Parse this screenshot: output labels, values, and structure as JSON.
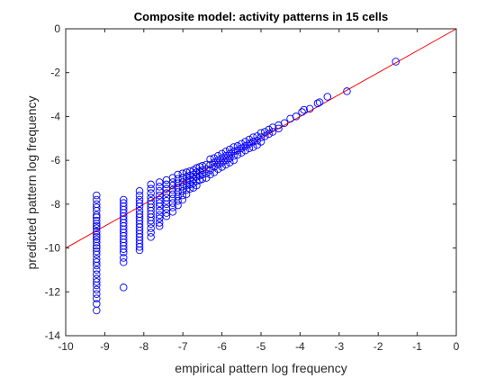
{
  "chart_data": {
    "type": "scatter",
    "title": "Composite model: activity patterns in 15 cells",
    "xlabel": "empirical pattern log frequency",
    "ylabel": "predicted pattern log frequency",
    "xlim": [
      -10,
      0
    ],
    "ylim": [
      -14,
      0
    ],
    "xticks": [
      -10,
      -9,
      -8,
      -7,
      -6,
      -5,
      -4,
      -3,
      -2,
      -1,
      0
    ],
    "yticks": [
      -14,
      -12,
      -10,
      -8,
      -6,
      -4,
      -2,
      0
    ],
    "grid": false,
    "legend": "none",
    "marker": "open-circle",
    "marker_color": "#0000ff",
    "reference_line": {
      "from": [
        -10,
        -10
      ],
      "to": [
        0,
        0
      ],
      "color": "#ff0000"
    },
    "series": [
      {
        "values": [
          [
            -9.21,
            -7.6
          ],
          [
            -9.21,
            -7.8
          ],
          [
            -9.21,
            -8.0
          ],
          [
            -9.21,
            -8.15
          ],
          [
            -9.21,
            -8.3
          ],
          [
            -9.21,
            -8.5
          ],
          [
            -9.21,
            -8.6
          ],
          [
            -9.21,
            -8.75
          ],
          [
            -9.21,
            -8.9
          ],
          [
            -9.21,
            -9.0
          ],
          [
            -9.21,
            -9.1
          ],
          [
            -9.21,
            -9.25
          ],
          [
            -9.21,
            -9.4
          ],
          [
            -9.21,
            -9.5
          ],
          [
            -9.21,
            -9.6
          ],
          [
            -9.21,
            -9.75
          ],
          [
            -9.21,
            -9.9
          ],
          [
            -9.21,
            -10.0
          ],
          [
            -9.21,
            -10.15
          ],
          [
            -9.21,
            -10.3
          ],
          [
            -9.21,
            -10.5
          ],
          [
            -9.21,
            -10.65
          ],
          [
            -9.21,
            -10.8
          ],
          [
            -9.21,
            -11.0
          ],
          [
            -9.21,
            -11.2
          ],
          [
            -9.21,
            -11.4
          ],
          [
            -9.21,
            -11.55
          ],
          [
            -9.21,
            -11.7
          ],
          [
            -9.21,
            -11.9
          ],
          [
            -9.21,
            -12.1
          ],
          [
            -9.21,
            -12.3
          ],
          [
            -9.21,
            -12.55
          ],
          [
            -9.21,
            -12.85
          ],
          [
            -8.52,
            -7.8
          ],
          [
            -8.52,
            -7.95
          ],
          [
            -8.52,
            -8.1
          ],
          [
            -8.52,
            -8.25
          ],
          [
            -8.52,
            -8.4
          ],
          [
            -8.52,
            -8.55
          ],
          [
            -8.52,
            -8.7
          ],
          [
            -8.52,
            -8.85
          ],
          [
            -8.52,
            -9.0
          ],
          [
            -8.52,
            -9.15
          ],
          [
            -8.52,
            -9.3
          ],
          [
            -8.52,
            -9.45
          ],
          [
            -8.52,
            -9.6
          ],
          [
            -8.52,
            -9.75
          ],
          [
            -8.52,
            -9.9
          ],
          [
            -8.52,
            -10.05
          ],
          [
            -8.52,
            -10.2
          ],
          [
            -8.52,
            -10.45
          ],
          [
            -8.52,
            -10.65
          ],
          [
            -8.52,
            -11.8
          ],
          [
            -8.11,
            -7.4
          ],
          [
            -8.11,
            -7.6
          ],
          [
            -8.11,
            -7.8
          ],
          [
            -8.11,
            -7.95
          ],
          [
            -8.11,
            -8.1
          ],
          [
            -8.11,
            -8.3
          ],
          [
            -8.11,
            -8.45
          ],
          [
            -8.11,
            -8.6
          ],
          [
            -8.11,
            -8.75
          ],
          [
            -8.11,
            -8.9
          ],
          [
            -8.11,
            -9.05
          ],
          [
            -8.11,
            -9.2
          ],
          [
            -8.11,
            -9.35
          ],
          [
            -8.11,
            -9.5
          ],
          [
            -8.11,
            -9.65
          ],
          [
            -8.11,
            -9.8
          ],
          [
            -8.11,
            -9.95
          ],
          [
            -8.11,
            -10.1
          ],
          [
            -7.82,
            -7.1
          ],
          [
            -7.82,
            -7.3
          ],
          [
            -7.82,
            -7.5
          ],
          [
            -7.82,
            -7.7
          ],
          [
            -7.82,
            -7.85
          ],
          [
            -7.82,
            -8.0
          ],
          [
            -7.82,
            -8.15
          ],
          [
            -7.82,
            -8.3
          ],
          [
            -7.82,
            -8.45
          ],
          [
            -7.82,
            -8.6
          ],
          [
            -7.82,
            -8.75
          ],
          [
            -7.82,
            -8.9
          ],
          [
            -7.82,
            -9.1
          ],
          [
            -7.82,
            -9.3
          ],
          [
            -7.82,
            -9.5
          ],
          [
            -7.6,
            -7.0
          ],
          [
            -7.6,
            -7.2
          ],
          [
            -7.6,
            -7.4
          ],
          [
            -7.6,
            -7.6
          ],
          [
            -7.6,
            -7.8
          ],
          [
            -7.6,
            -7.95
          ],
          [
            -7.6,
            -8.1
          ],
          [
            -7.6,
            -8.3
          ],
          [
            -7.6,
            -8.5
          ],
          [
            -7.6,
            -8.65
          ],
          [
            -7.6,
            -8.85
          ],
          [
            -7.6,
            -9.0
          ],
          [
            -7.42,
            -6.9
          ],
          [
            -7.42,
            -7.1
          ],
          [
            -7.42,
            -7.3
          ],
          [
            -7.42,
            -7.5
          ],
          [
            -7.42,
            -7.7
          ],
          [
            -7.42,
            -7.85
          ],
          [
            -7.42,
            -8.0
          ],
          [
            -7.42,
            -8.2
          ],
          [
            -7.42,
            -8.4
          ],
          [
            -7.42,
            -8.55
          ],
          [
            -7.26,
            -6.8
          ],
          [
            -7.26,
            -7.0
          ],
          [
            -7.26,
            -7.15
          ],
          [
            -7.26,
            -7.35
          ],
          [
            -7.26,
            -7.55
          ],
          [
            -7.26,
            -7.75
          ],
          [
            -7.26,
            -7.95
          ],
          [
            -7.26,
            -8.15
          ],
          [
            -7.26,
            -8.35
          ],
          [
            -7.13,
            -6.65
          ],
          [
            -7.13,
            -6.85
          ],
          [
            -7.13,
            -7.05
          ],
          [
            -7.13,
            -7.25
          ],
          [
            -7.13,
            -7.45
          ],
          [
            -7.13,
            -7.65
          ],
          [
            -7.13,
            -7.85
          ],
          [
            -7.13,
            -8.05
          ],
          [
            -7.01,
            -6.6
          ],
          [
            -7.01,
            -6.8
          ],
          [
            -7.01,
            -7.0
          ],
          [
            -7.01,
            -7.2
          ],
          [
            -7.01,
            -7.4
          ],
          [
            -7.01,
            -7.6
          ],
          [
            -7.01,
            -7.8
          ],
          [
            -6.91,
            -6.55
          ],
          [
            -6.91,
            -6.75
          ],
          [
            -6.91,
            -6.95
          ],
          [
            -6.91,
            -7.15
          ],
          [
            -6.91,
            -7.35
          ],
          [
            -6.91,
            -7.55
          ],
          [
            -6.82,
            -6.5
          ],
          [
            -6.82,
            -6.7
          ],
          [
            -6.82,
            -6.9
          ],
          [
            -6.82,
            -7.1
          ],
          [
            -6.82,
            -7.3
          ],
          [
            -6.73,
            -6.45
          ],
          [
            -6.73,
            -6.65
          ],
          [
            -6.73,
            -6.85
          ],
          [
            -6.73,
            -7.05
          ],
          [
            -6.73,
            -7.25
          ],
          [
            -6.65,
            -6.35
          ],
          [
            -6.65,
            -6.55
          ],
          [
            -6.65,
            -6.75
          ],
          [
            -6.65,
            -6.95
          ],
          [
            -6.65,
            -7.15
          ],
          [
            -6.57,
            -6.3
          ],
          [
            -6.57,
            -6.5
          ],
          [
            -6.57,
            -6.7
          ],
          [
            -6.57,
            -6.9
          ],
          [
            -6.5,
            -6.25
          ],
          [
            -6.5,
            -6.45
          ],
          [
            -6.5,
            -6.65
          ],
          [
            -6.5,
            -6.85
          ],
          [
            -6.4,
            -6.2
          ],
          [
            -6.4,
            -6.4
          ],
          [
            -6.4,
            -6.6
          ],
          [
            -6.4,
            -6.8
          ],
          [
            -6.3,
            -5.95
          ],
          [
            -6.3,
            -6.2
          ],
          [
            -6.3,
            -6.45
          ],
          [
            -6.3,
            -6.65
          ],
          [
            -6.2,
            -5.9
          ],
          [
            -6.2,
            -6.1
          ],
          [
            -6.2,
            -6.3
          ],
          [
            -6.2,
            -6.55
          ],
          [
            -6.1,
            -5.8
          ],
          [
            -6.1,
            -6.0
          ],
          [
            -6.1,
            -6.2
          ],
          [
            -6.1,
            -6.4
          ],
          [
            -6.0,
            -5.7
          ],
          [
            -6.0,
            -5.9
          ],
          [
            -6.0,
            -6.1
          ],
          [
            -6.0,
            -6.3
          ],
          [
            -5.9,
            -5.6
          ],
          [
            -5.9,
            -5.8
          ],
          [
            -5.9,
            -6.0
          ],
          [
            -5.9,
            -6.2
          ],
          [
            -5.8,
            -5.5
          ],
          [
            -5.8,
            -5.7
          ],
          [
            -5.8,
            -5.9
          ],
          [
            -5.8,
            -6.1
          ],
          [
            -5.7,
            -5.4
          ],
          [
            -5.7,
            -5.6
          ],
          [
            -5.7,
            -5.8
          ],
          [
            -5.7,
            -6.0
          ],
          [
            -5.6,
            -5.35
          ],
          [
            -5.6,
            -5.55
          ],
          [
            -5.6,
            -5.75
          ],
          [
            -5.5,
            -5.25
          ],
          [
            -5.5,
            -5.45
          ],
          [
            -5.5,
            -5.65
          ],
          [
            -5.4,
            -5.15
          ],
          [
            -5.4,
            -5.35
          ],
          [
            -5.4,
            -5.55
          ],
          [
            -5.3,
            -5.05
          ],
          [
            -5.3,
            -5.25
          ],
          [
            -5.3,
            -5.45
          ],
          [
            -5.2,
            -4.95
          ],
          [
            -5.2,
            -5.15
          ],
          [
            -5.2,
            -5.4
          ],
          [
            -5.1,
            -4.9
          ],
          [
            -5.1,
            -5.1
          ],
          [
            -5.1,
            -5.3
          ],
          [
            -5.0,
            -4.75
          ],
          [
            -5.0,
            -4.95
          ],
          [
            -5.0,
            -5.15
          ],
          [
            -4.9,
            -4.7
          ],
          [
            -4.9,
            -4.9
          ],
          [
            -4.8,
            -4.6
          ],
          [
            -4.8,
            -4.8
          ],
          [
            -4.7,
            -4.5
          ],
          [
            -4.7,
            -4.7
          ],
          [
            -4.55,
            -4.4
          ],
          [
            -4.55,
            -4.55
          ],
          [
            -4.4,
            -4.3
          ],
          [
            -4.25,
            -4.1
          ],
          [
            -4.1,
            -4.0
          ],
          [
            -3.95,
            -3.8
          ],
          [
            -3.9,
            -3.7
          ],
          [
            -3.75,
            -3.65
          ],
          [
            -3.55,
            -3.4
          ],
          [
            -3.5,
            -3.35
          ],
          [
            -3.3,
            -3.1
          ],
          [
            -2.8,
            -2.85
          ],
          [
            -1.55,
            -1.5
          ]
        ]
      }
    ]
  }
}
